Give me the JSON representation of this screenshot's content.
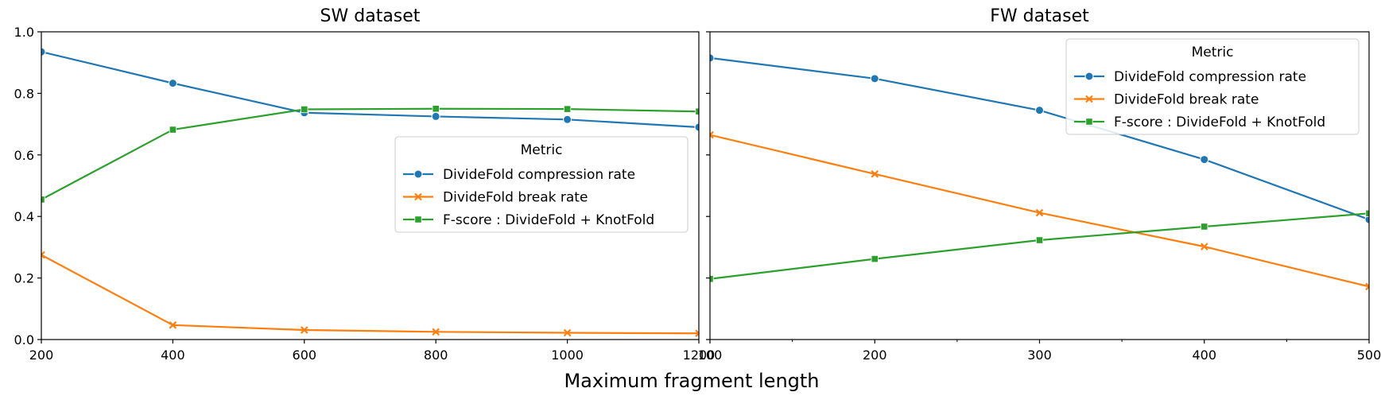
{
  "figure": {
    "xlabel": "Maximum fragment length"
  },
  "chart_data": [
    {
      "type": "line",
      "title": "SW dataset",
      "xlabel": "",
      "ylabel": "",
      "x": [
        200,
        400,
        600,
        800,
        1000,
        1200
      ],
      "xlim": [
        200,
        1200
      ],
      "ylim": [
        0.0,
        1.0
      ],
      "xticks": [
        200,
        400,
        600,
        800,
        1000,
        1200
      ],
      "yticks": [
        "0.0",
        "0.2",
        "0.4",
        "0.6",
        "0.8",
        "1.0"
      ],
      "grid": false,
      "legend": {
        "title": "Metric",
        "placement": "center-right"
      },
      "series": [
        {
          "name": "DivideFold compression rate",
          "color": "#1f77b4",
          "marker": "circle",
          "values": [
            0.935,
            0.833,
            0.737,
            0.725,
            0.715,
            0.69
          ]
        },
        {
          "name": "DivideFold break rate",
          "color": "#ff7f0e",
          "marker": "x",
          "values": [
            0.275,
            0.047,
            0.031,
            0.025,
            0.022,
            0.02
          ]
        },
        {
          "name": "F-score : DivideFold + KnotFold",
          "color": "#2ca02c",
          "marker": "square",
          "values": [
            0.455,
            0.682,
            0.748,
            0.75,
            0.749,
            0.741
          ]
        }
      ]
    },
    {
      "type": "line",
      "title": "FW dataset",
      "xlabel": "",
      "ylabel": "",
      "x": [
        100,
        200,
        300,
        400,
        500
      ],
      "xlim": [
        100,
        500
      ],
      "ylim": [
        0.0,
        1.0
      ],
      "xticks": [
        100,
        200,
        300,
        400,
        500
      ],
      "yticks": [
        "0.0",
        "0.2",
        "0.4",
        "0.6",
        "0.8",
        "1.0"
      ],
      "grid": false,
      "legend": {
        "title": "Metric",
        "placement": "upper-right"
      },
      "series": [
        {
          "name": "DivideFold compression rate",
          "color": "#1f77b4",
          "marker": "circle",
          "values": [
            0.915,
            0.848,
            0.745,
            0.585,
            0.39
          ]
        },
        {
          "name": "DivideFold break rate",
          "color": "#ff7f0e",
          "marker": "x",
          "values": [
            0.665,
            0.538,
            0.412,
            0.302,
            0.172
          ]
        },
        {
          "name": "F-score : DivideFold + KnotFold",
          "color": "#2ca02c",
          "marker": "square",
          "values": [
            0.197,
            0.262,
            0.323,
            0.367,
            0.41
          ]
        }
      ]
    }
  ]
}
